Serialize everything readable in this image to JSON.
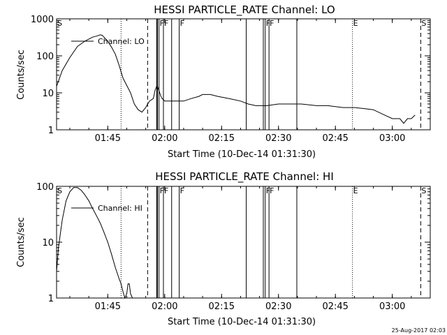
{
  "footer": {
    "date_stamp": "25-Aug-2017 02:03"
  },
  "chart_data": [
    {
      "type": "line",
      "title": "HESSI PARTICLE_RATE Channel: LO",
      "xlabel": "Start Time (10-Dec-14 01:31:30)",
      "ylabel": "Counts/sec",
      "y_scale": "log",
      "xlim": [
        "01:31:30",
        "03:10:00"
      ],
      "ylim": [
        1,
        1000
      ],
      "x_ticks": [
        "01:45",
        "02:00",
        "02:15",
        "02:30",
        "02:45",
        "03:00"
      ],
      "y_ticks": [
        "1",
        "10",
        "100",
        "1000"
      ],
      "legend": {
        "label": "Channel: LO",
        "placement": "top-left"
      },
      "series": [
        {
          "name": "Channel: LO",
          "x": [
            "01:31:30",
            "01:33:00",
            "01:35:00",
            "01:37:00",
            "01:39:00",
            "01:41:00",
            "01:42:00",
            "01:43:00",
            "01:43:30",
            "01:44:00",
            "01:45:00",
            "01:46:00",
            "01:47:00",
            "01:48:00",
            "01:49:00",
            "01:51:00",
            "01:52:00",
            "01:53:00",
            "01:54:00",
            "01:55:00",
            "01:55:30",
            "01:56:00",
            "01:57:00",
            "01:57:30",
            "01:58:00",
            "01:59:00",
            "01:59:20",
            "01:59:40",
            "02:00:00",
            "02:01:00",
            "02:03:00",
            "02:05:00",
            "02:07:00",
            "02:09:00",
            "02:10:00",
            "02:12:00",
            "02:14:00",
            "02:17:00",
            "02:20:00",
            "02:22:00",
            "02:24:00",
            "02:27:00",
            "02:30:00",
            "02:33:00",
            "02:36:00",
            "02:40:00",
            "02:43:00",
            "02:47:00",
            "02:50:00",
            "02:52:00",
            "02:55:00",
            "02:58:00",
            "03:00:00",
            "03:02:00",
            "03:03:00",
            "03:04:00",
            "03:05:00",
            "03:06:00"
          ],
          "y": [
            15,
            40,
            90,
            180,
            250,
            320,
            340,
            370,
            360,
            320,
            250,
            170,
            110,
            55,
            25,
            10,
            5,
            3.5,
            3,
            4,
            5,
            6,
            7,
            12,
            16,
            8,
            7,
            6.5,
            6,
            6,
            6,
            6,
            7,
            8,
            9,
            9,
            8,
            7,
            6,
            5,
            4.5,
            4.5,
            5,
            5,
            5,
            4.5,
            4.5,
            4,
            4,
            3.8,
            3.5,
            2.5,
            2,
            2,
            1.5,
            2,
            2,
            2.5
          ]
        }
      ],
      "markers": [
        {
          "x": "01:31:30",
          "style": "label",
          "label": "S"
        },
        {
          "x": "01:48:30",
          "style": "dotted"
        },
        {
          "x": "01:55:30",
          "style": "dashed"
        },
        {
          "x": "01:58:00",
          "style": "solid-thick"
        },
        {
          "x": "01:58:30",
          "style": "solid",
          "label": "F"
        },
        {
          "x": "01:59:40",
          "style": "solid",
          "label": "F"
        },
        {
          "x": "02:01:50",
          "style": "solid"
        },
        {
          "x": "02:03:50",
          "style": "solid",
          "label": "F"
        },
        {
          "x": "02:21:30",
          "style": "solid"
        },
        {
          "x": "02:26:00",
          "style": "solid"
        },
        {
          "x": "02:26:30",
          "style": "solid",
          "label": "F"
        },
        {
          "x": "02:27:30",
          "style": "solid",
          "label": "F"
        },
        {
          "x": "02:34:50",
          "style": "solid"
        },
        {
          "x": "02:49:30",
          "style": "dotted",
          "label": "E"
        },
        {
          "x": "03:07:30",
          "style": "dashed",
          "label": "S"
        }
      ]
    },
    {
      "type": "line",
      "title": "HESSI PARTICLE_RATE Channel: HI",
      "xlabel": "Start Time (10-Dec-14 01:31:30)",
      "ylabel": "Counts/sec",
      "y_scale": "log",
      "xlim": [
        "01:31:30",
        "03:10:00"
      ],
      "ylim": [
        1,
        100
      ],
      "x_ticks": [
        "01:45",
        "02:00",
        "02:15",
        "02:30",
        "02:45",
        "03:00"
      ],
      "y_ticks": [
        "1",
        "10",
        "100"
      ],
      "legend": {
        "label": "Channel: HI",
        "placement": "top-left"
      },
      "series": [
        {
          "name": "Channel: HI",
          "x": [
            "01:31:30",
            "01:32:00",
            "01:33:00",
            "01:34:00",
            "01:35:00",
            "01:36:00",
            "01:37:00",
            "01:38:00",
            "01:39:00",
            "01:40:00",
            "01:41:00",
            "01:42:00",
            "01:43:00",
            "01:44:00",
            "01:45:00",
            "01:46:00",
            "01:47:00",
            "01:48:00",
            "01:48:30",
            "01:49:00",
            "01:49:30",
            "01:50:00",
            "01:50:20",
            "01:50:40",
            "01:51:00",
            "01:51:30",
            "01:52:00"
          ],
          "y": [
            3,
            8,
            25,
            55,
            80,
            95,
            95,
            85,
            70,
            55,
            40,
            30,
            22,
            15,
            10,
            6,
            3.5,
            2.2,
            1.8,
            1.3,
            1,
            1.2,
            1.8,
            1.8,
            1.2,
            1,
            1
          ]
        }
      ],
      "markers": [
        {
          "x": "01:31:30",
          "style": "label",
          "label": "S"
        },
        {
          "x": "01:48:30",
          "style": "dotted"
        },
        {
          "x": "01:55:30",
          "style": "dashed"
        },
        {
          "x": "01:58:00",
          "style": "solid-thick"
        },
        {
          "x": "01:58:30",
          "style": "solid",
          "label": "F"
        },
        {
          "x": "01:59:40",
          "style": "solid",
          "label": "F"
        },
        {
          "x": "02:01:50",
          "style": "solid"
        },
        {
          "x": "02:03:50",
          "style": "solid",
          "label": "F"
        },
        {
          "x": "02:21:30",
          "style": "solid"
        },
        {
          "x": "02:26:00",
          "style": "solid"
        },
        {
          "x": "02:26:30",
          "style": "solid",
          "label": "F"
        },
        {
          "x": "02:27:30",
          "style": "solid",
          "label": "F"
        },
        {
          "x": "02:34:50",
          "style": "solid"
        },
        {
          "x": "02:49:30",
          "style": "dotted",
          "label": "E"
        },
        {
          "x": "03:07:30",
          "style": "dashed",
          "label": "S"
        }
      ]
    }
  ]
}
